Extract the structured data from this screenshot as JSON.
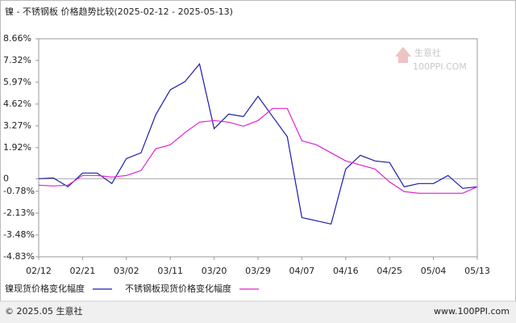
{
  "chart_data": {
    "type": "line",
    "title": "镍 - 不锈钢板 价格趋势比较(2025-02-12 - 2025-05-13)",
    "categories": [
      "02/12",
      null,
      null,
      "02/21",
      null,
      null,
      "03/02",
      null,
      null,
      "03/11",
      null,
      null,
      "03/20",
      null,
      null,
      "03/29",
      null,
      null,
      "04/07",
      null,
      null,
      "04/16",
      null,
      null,
      "04/25",
      null,
      null,
      "05/04",
      null,
      null,
      "05/13"
    ],
    "series": [
      {
        "name": "镍现货价格变化幅度",
        "color": "#1c1ca8",
        "values": [
          0,
          0.05,
          -0.5,
          0.35,
          0.35,
          -0.3,
          1.25,
          1.6,
          3.95,
          5.5,
          6.0,
          7.1,
          3.1,
          4.0,
          3.85,
          5.1,
          3.85,
          2.6,
          -2.4,
          -2.6,
          -2.8,
          0.6,
          1.45,
          1.1,
          1.0,
          -0.5,
          -0.3,
          -0.3,
          0.2,
          -0.6,
          -0.5
        ]
      },
      {
        "name": "不锈钢板现货价格变化幅度",
        "color": "#e020d0",
        "values": [
          -0.4,
          -0.45,
          -0.4,
          0.2,
          0.2,
          0.1,
          0.2,
          0.5,
          1.85,
          2.1,
          2.85,
          3.5,
          3.6,
          3.5,
          3.25,
          3.6,
          4.35,
          4.35,
          2.35,
          2.1,
          1.6,
          1.1,
          0.85,
          0.6,
          -0.2,
          -0.8,
          -0.9,
          -0.9,
          -0.9,
          -0.9,
          -0.5
        ]
      }
    ],
    "ylim": [
      -4.83,
      8.66
    ],
    "yticks": [
      {
        "value": 8.66,
        "label": "8.66%"
      },
      {
        "value": 7.32,
        "label": "7.32%"
      },
      {
        "value": 5.97,
        "label": "5.97%"
      },
      {
        "value": 4.62,
        "label": "4.62%"
      },
      {
        "value": 3.27,
        "label": "3.27%"
      },
      {
        "value": 1.92,
        "label": "1.92%"
      },
      0,
      {
        "value": -0.78,
        "label": "-0.78%"
      },
      {
        "value": -2.13,
        "label": "-2.13%"
      },
      {
        "value": -3.48,
        "label": "-3.48%"
      },
      {
        "value": -4.83,
        "label": "-4.83%"
      }
    ],
    "watermark": "生意社",
    "watermark_sub": "100PPI.COM",
    "footer_left": "© 2025.05 生意社",
    "footer_right": "www.100PPI.com"
  }
}
